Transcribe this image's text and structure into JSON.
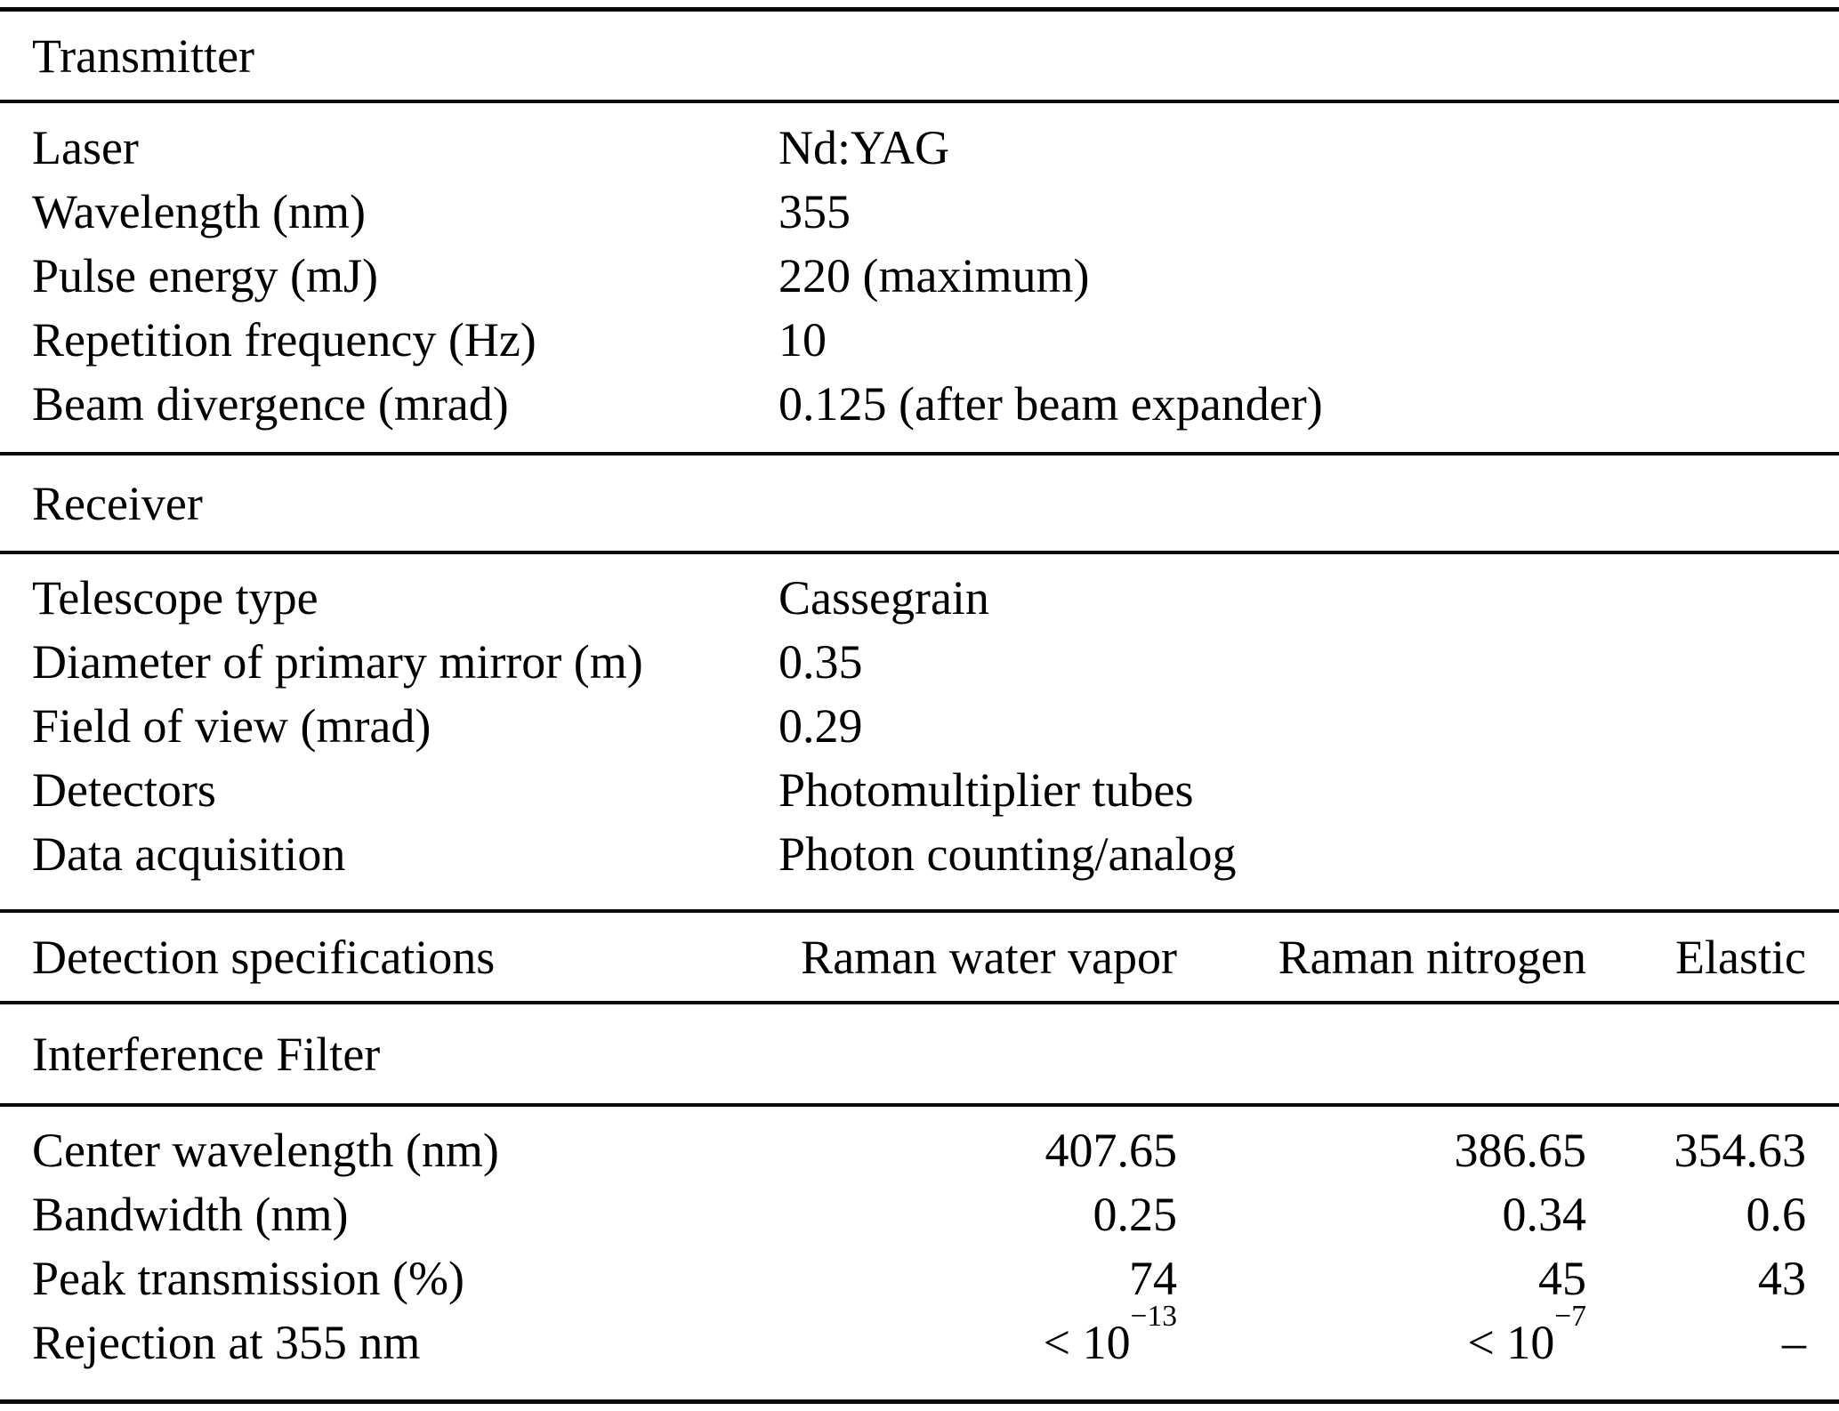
{
  "table": {
    "sections": {
      "transmitter": {
        "title": "Transmitter",
        "rows": [
          {
            "label": "Laser",
            "value": "Nd:YAG"
          },
          {
            "label": "Wavelength (nm)",
            "value": "355"
          },
          {
            "label": "Pulse energy (mJ)",
            "value": "220 (maximum)"
          },
          {
            "label": "Repetition frequency (Hz)",
            "value": "10"
          },
          {
            "label": "Beam divergence (mrad)",
            "value": "0.125 (after beam expander)"
          }
        ]
      },
      "receiver": {
        "title": "Receiver",
        "rows": [
          {
            "label": "Telescope type",
            "value": "Cassegrain"
          },
          {
            "label": "Diameter of primary mirror (m)",
            "value": "0.35"
          },
          {
            "label": "Field of view (mrad)",
            "value": "0.29"
          },
          {
            "label": "Detectors",
            "value": "Photomultiplier tubes"
          },
          {
            "label": "Data acquisition",
            "value": "Photon counting/analog"
          }
        ]
      },
      "detection": {
        "label": "Detection specifications",
        "columns": [
          "Raman water vapor",
          "Raman nitrogen",
          "Elastic"
        ]
      },
      "interference_filter": {
        "title": "Interference Filter",
        "rows": [
          {
            "label": "Center wavelength (nm)",
            "values": [
              "407.65",
              "386.65",
              "354.63"
            ]
          },
          {
            "label": "Bandwidth (nm)",
            "values": [
              "0.25",
              "0.34",
              "0.6"
            ]
          },
          {
            "label": "Peak transmission (%)",
            "values": [
              "74",
              "45",
              "43"
            ]
          },
          {
            "label": "Rejection at 355 nm",
            "values_rich": [
              {
                "base": "< 10",
                "exp": "−13"
              },
              {
                "base": "< 10",
                "exp": "−7"
              },
              {
                "base": "–",
                "exp": ""
              }
            ]
          }
        ]
      }
    }
  }
}
